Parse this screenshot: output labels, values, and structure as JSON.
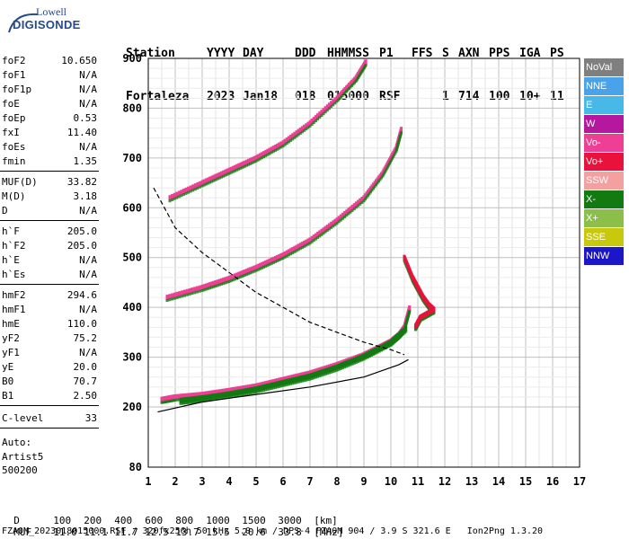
{
  "logo": {
    "top": "Lowell",
    "bottom": "DIGISONDE"
  },
  "header": {
    "row1": [
      "Station",
      "YYYY",
      "DAY",
      "DDD",
      "HHMMSS",
      "P1",
      "FFS",
      "S",
      "AXN",
      "PPS",
      "IGA",
      "PS"
    ],
    "row2": [
      "Fortaleza",
      "2023",
      "Jan18",
      "018",
      "015000",
      "RSF",
      "",
      "1",
      "714",
      "100",
      "10+",
      "11"
    ]
  },
  "params": [
    {
      "name": "foF2",
      "value": "10.650"
    },
    {
      "name": "foF1",
      "value": "N/A"
    },
    {
      "name": "foF1p",
      "value": "N/A"
    },
    {
      "name": "foE",
      "value": "N/A"
    },
    {
      "name": "foEp",
      "value": "0.53"
    },
    {
      "name": "fxI",
      "value": "11.40"
    },
    {
      "name": "foEs",
      "value": "N/A"
    },
    {
      "name": "fmin",
      "value": "1.35"
    },
    {
      "name": "MUF(D)",
      "value": "33.82"
    },
    {
      "name": "M(D)",
      "value": "3.18"
    },
    {
      "name": "D",
      "value": "N/A"
    },
    {
      "name": "h`F",
      "value": "205.0"
    },
    {
      "name": "h`F2",
      "value": "205.0"
    },
    {
      "name": "h`E",
      "value": "N/A"
    },
    {
      "name": "h`Es",
      "value": "N/A"
    },
    {
      "name": "hmF2",
      "value": "294.6"
    },
    {
      "name": "hmF1",
      "value": "N/A"
    },
    {
      "name": "hmE",
      "value": "110.0"
    },
    {
      "name": "yF2",
      "value": "75.2"
    },
    {
      "name": "yF1",
      "value": "N/A"
    },
    {
      "name": "yE",
      "value": "20.0"
    },
    {
      "name": "B0",
      "value": "70.7"
    },
    {
      "name": "B1",
      "value": "2.50"
    },
    {
      "name": "C-level",
      "value": "33"
    }
  ],
  "auto": {
    "label": "Auto:",
    "system": "Artist5",
    "version": "500200"
  },
  "legend": [
    {
      "label": "NoVal",
      "color": "#7f7f7f"
    },
    {
      "label": "NNE",
      "color": "#4aa3e8"
    },
    {
      "label": "E",
      "color": "#47b8e8"
    },
    {
      "label": "W",
      "color": "#b5179e"
    },
    {
      "label": "Vo-",
      "color": "#ef3f95"
    },
    {
      "label": "Vo+",
      "color": "#e8123c"
    },
    {
      "label": "SSW",
      "color": "#f4a0a0"
    },
    {
      "label": "X-",
      "color": "#117a11"
    },
    {
      "label": "X+",
      "color": "#8cbf4a"
    },
    {
      "label": "SSE",
      "color": "#c8c80c"
    },
    {
      "label": "NNW",
      "color": "#1b16c8"
    }
  ],
  "footer": {
    "d_label": "D",
    "d_values": [
      "100",
      "200",
      "400",
      "600",
      "800",
      "1000",
      "1500",
      "3000",
      "[km]"
    ],
    "muf_label": "MUF",
    "muf_values": [
      "11.0",
      "11.1",
      "11.7",
      "12.5",
      "13.7",
      "15.5",
      "20.6",
      "33.8",
      "[MHz]"
    ],
    "file_line": "FZA0M_2023018015000.RSF / 320fx256h 50 kHz 5.0 km / DPS-4 FZA0M 904 / 3.9 S 321.6 E   Ion2Png 1.3.20"
  },
  "chart_data": {
    "type": "scatter",
    "xlabel": "",
    "ylabel": "",
    "x_ticks": [
      1,
      2,
      3,
      4,
      5,
      6,
      7,
      8,
      9,
      10,
      11,
      12,
      13,
      14,
      15,
      16,
      17
    ],
    "y_ticks": [
      80,
      200,
      300,
      400,
      500,
      600,
      700,
      800,
      900
    ],
    "xlim": [
      1,
      17
    ],
    "ylim_segments": "80 at bottom (broken axis), then 200–900 km linear",
    "grid": true,
    "series": [
      {
        "name": "O-trace F2",
        "color": "#ef3f95",
        "points": [
          [
            1.5,
            215
          ],
          [
            2,
            220
          ],
          [
            3,
            225
          ],
          [
            4,
            233
          ],
          [
            5,
            242
          ],
          [
            6,
            255
          ],
          [
            7,
            268
          ],
          [
            8,
            285
          ],
          [
            9,
            305
          ],
          [
            9.5,
            318
          ],
          [
            10,
            332
          ],
          [
            10.3,
            345
          ],
          [
            10.5,
            360
          ],
          [
            10.6,
            380
          ],
          [
            10.7,
            400
          ]
        ]
      },
      {
        "name": "X-trace F2",
        "color": "#117a11",
        "points": [
          [
            2.2,
            213
          ],
          [
            3,
            218
          ],
          [
            4,
            226
          ],
          [
            5,
            236
          ],
          [
            6,
            249
          ],
          [
            7,
            262
          ],
          [
            8,
            280
          ],
          [
            9,
            302
          ],
          [
            10,
            330
          ],
          [
            10.6,
            360
          ]
        ]
      },
      {
        "name": "multihop 2F",
        "color": "#ef3f95",
        "points": [
          [
            1.7,
            420
          ],
          [
            3,
            440
          ],
          [
            4,
            458
          ],
          [
            5,
            480
          ],
          [
            6,
            505
          ],
          [
            7,
            535
          ],
          [
            8,
            575
          ],
          [
            9,
            620
          ],
          [
            9.7,
            670
          ],
          [
            10.2,
            720
          ],
          [
            10.4,
            760
          ]
        ]
      },
      {
        "name": "multihop 3F",
        "color": "#ef3f95",
        "points": [
          [
            1.8,
            620
          ],
          [
            3,
            650
          ],
          [
            4,
            675
          ],
          [
            5,
            700
          ],
          [
            6,
            730
          ],
          [
            7,
            770
          ],
          [
            8,
            820
          ],
          [
            8.7,
            860
          ],
          [
            9.1,
            895
          ]
        ]
      },
      {
        "name": "spread F",
        "color": "#e8123c",
        "points": [
          [
            10.5,
            500
          ],
          [
            10.8,
            460
          ],
          [
            11,
            440
          ],
          [
            11.2,
            420
          ],
          [
            11.4,
            405
          ],
          [
            11.6,
            395
          ],
          [
            11.1,
            380
          ],
          [
            10.9,
            360
          ]
        ]
      },
      {
        "name": "profile",
        "color": "#000000",
        "points": [
          [
            1.35,
            190
          ],
          [
            3,
            210
          ],
          [
            5,
            225
          ],
          [
            7,
            240
          ],
          [
            9,
            260
          ],
          [
            10.3,
            285
          ],
          [
            10.65,
            295
          ]
        ]
      },
      {
        "name": "MUF curve",
        "color": "#000000",
        "points": [
          [
            1.2,
            640
          ],
          [
            2,
            560
          ],
          [
            3,
            510
          ],
          [
            4,
            470
          ],
          [
            5,
            430
          ],
          [
            6,
            400
          ],
          [
            7,
            370
          ],
          [
            8,
            350
          ],
          [
            9,
            330
          ],
          [
            10,
            315
          ],
          [
            10.5,
            305
          ]
        ]
      }
    ]
  }
}
